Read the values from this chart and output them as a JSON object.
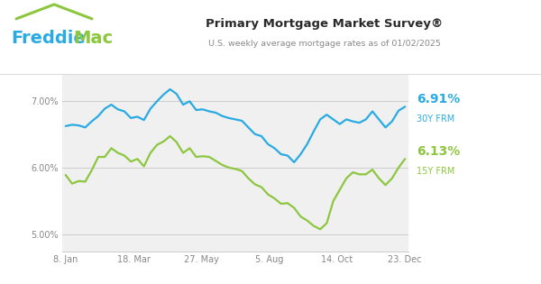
{
  "title": "Primary Mortgage Market Survey®",
  "subtitle": "U.S. weekly average mortgage rates as of 01/02/2025",
  "freddie_blue": "#29ABE2",
  "freddie_green_logo": "#8DC63F",
  "line_blue": "#29ABE2",
  "line_green": "#8DC63F",
  "bg_color": "#FFFFFF",
  "plot_bg": "#F0F0F0",
  "grid_color": "#CCCCCC",
  "label_color_30y": "#29ABE2",
  "label_color_15y": "#8DC63F",
  "label_30y_pct": "6.91%",
  "label_30y_name": "30Y FRM",
  "label_15y_pct": "6.13%",
  "label_15y_name": "15Y FRM",
  "yticks": [
    5.0,
    6.0,
    7.0
  ],
  "ytick_labels": [
    "5.00%",
    "6.00%",
    "7.00%"
  ],
  "xtick_labels": [
    "8. Jan",
    "18. Mar",
    "27. May",
    "5. Aug",
    "14. Oct",
    "23. Dec"
  ],
  "ylim": [
    4.75,
    7.4
  ],
  "rate_30y": [
    6.62,
    6.64,
    6.63,
    6.6,
    6.69,
    6.77,
    6.88,
    6.94,
    6.87,
    6.84,
    6.74,
    6.76,
    6.71,
    6.88,
    6.99,
    7.09,
    7.17,
    7.1,
    6.94,
    6.99,
    6.86,
    6.87,
    6.84,
    6.82,
    6.77,
    6.74,
    6.72,
    6.7,
    6.6,
    6.5,
    6.47,
    6.35,
    6.29,
    6.2,
    6.18,
    6.08,
    6.2,
    6.35,
    6.54,
    6.72,
    6.79,
    6.72,
    6.65,
    6.72,
    6.69,
    6.67,
    6.72,
    6.84,
    6.72,
    6.6,
    6.69,
    6.85,
    6.91
  ],
  "rate_15y": [
    5.89,
    5.76,
    5.8,
    5.79,
    5.96,
    6.16,
    6.16,
    6.29,
    6.22,
    6.18,
    6.09,
    6.13,
    6.02,
    6.22,
    6.34,
    6.39,
    6.47,
    6.38,
    6.22,
    6.29,
    6.16,
    6.17,
    6.16,
    6.1,
    6.04,
    6.0,
    5.98,
    5.95,
    5.84,
    5.75,
    5.71,
    5.6,
    5.54,
    5.46,
    5.47,
    5.4,
    5.27,
    5.21,
    5.13,
    5.08,
    5.17,
    5.5,
    5.67,
    5.84,
    5.93,
    5.9,
    5.9,
    5.97,
    5.84,
    5.74,
    5.84,
    6.0,
    6.13
  ],
  "header_divider_color": "#DDDDDD",
  "tick_color": "#888888"
}
